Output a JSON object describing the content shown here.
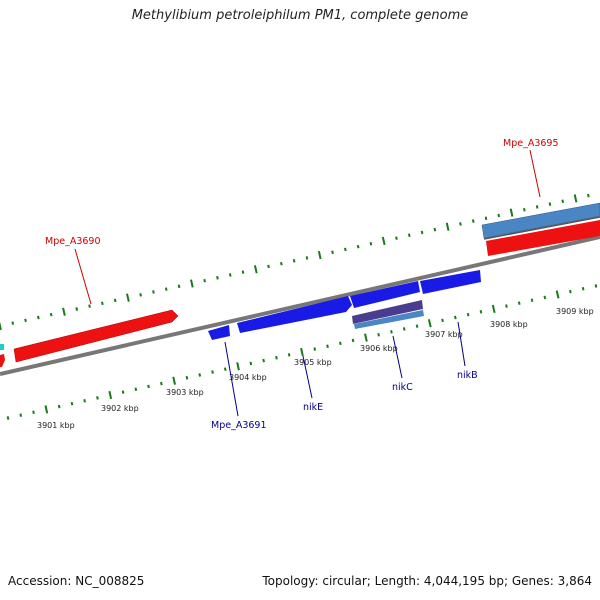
{
  "title": "Methylibium petroleiphilum PM1, complete genome",
  "footer": {
    "accession": "Accession: NC_008825",
    "stats": "Topology: circular; Length: 4,044,195 bp; Genes: 3,864"
  },
  "colors": {
    "forward_gene": "#ee1111",
    "reverse_gene": "#1a1ae6",
    "rna_feature": "#4a86c4",
    "dark_feature": "#4a3d8f",
    "cyan_feature": "#22cccc",
    "backbone": "#7a7a7a",
    "tick": "#1a7a1a",
    "forward_label": "#cc0000",
    "reverse_label": "#00008b"
  },
  "scale_labels": [
    "3901 kbp",
    "3902 kbp",
    "3903 kbp",
    "3904 kbp",
    "3905 kbp",
    "3906 kbp",
    "3907 kbp",
    "3908 kbp",
    "3909 kbp"
  ],
  "gene_labels": {
    "mpe_a3690": "Mpe_A3690",
    "mpe_a3695": "Mpe_A3695",
    "mpe_a3691": "Mpe_A3691",
    "nike": "nikE",
    "nikc": "nikC",
    "nikb": "nikB"
  }
}
